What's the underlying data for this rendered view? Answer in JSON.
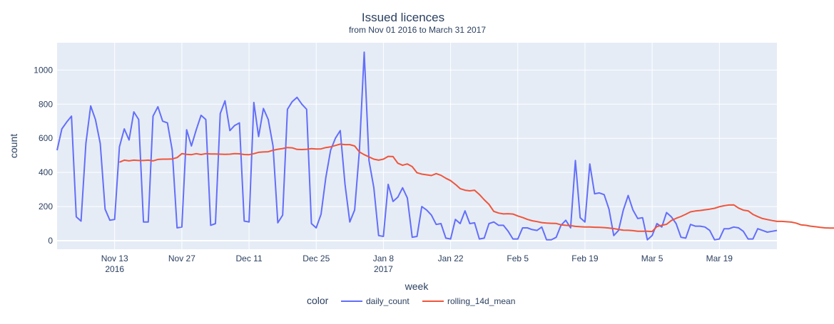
{
  "chart_data": {
    "type": "line",
    "title": "Issued licences",
    "subtitle": "from Nov 01 2016 to March 31 2017",
    "xlabel": "week",
    "ylabel": "count",
    "x_start": "2016-11-01",
    "x_end": "2017-03-31",
    "xlim": [
      "2016-11-01",
      "2017-03-31"
    ],
    "ylim": [
      -50,
      1160
    ],
    "y_ticks": [
      0,
      200,
      400,
      600,
      800,
      1000
    ],
    "x_ticks": [
      {
        "date": "2016-11-13",
        "label": "Nov 13",
        "sublabel": "2016"
      },
      {
        "date": "2016-11-27",
        "label": "Nov 27",
        "sublabel": ""
      },
      {
        "date": "2016-12-11",
        "label": "Dec 11",
        "sublabel": ""
      },
      {
        "date": "2016-12-25",
        "label": "Dec 25",
        "sublabel": ""
      },
      {
        "date": "2017-01-08",
        "label": "Jan 8",
        "sublabel": "2017"
      },
      {
        "date": "2017-01-22",
        "label": "Jan 22",
        "sublabel": ""
      },
      {
        "date": "2017-02-05",
        "label": "Feb 5",
        "sublabel": ""
      },
      {
        "date": "2017-02-19",
        "label": "Feb 19",
        "sublabel": ""
      },
      {
        "date": "2017-03-05",
        "label": "Mar 5",
        "sublabel": ""
      },
      {
        "date": "2017-03-19",
        "label": "Mar 19",
        "sublabel": ""
      }
    ],
    "grid": true,
    "legend": {
      "title": "color",
      "position": "bottom-center"
    },
    "series": [
      {
        "name": "daily_count",
        "color": "#636efa",
        "start_date": "2016-11-01",
        "values": [
          530,
          655,
          695,
          730,
          140,
          115,
          570,
          790,
          710,
          570,
          185,
          120,
          125,
          550,
          655,
          590,
          755,
          710,
          110,
          110,
          730,
          785,
          700,
          690,
          530,
          75,
          80,
          650,
          555,
          650,
          735,
          710,
          90,
          100,
          745,
          820,
          645,
          675,
          690,
          115,
          110,
          810,
          610,
          775,
          710,
          555,
          105,
          150,
          770,
          815,
          840,
          800,
          770,
          100,
          75,
          155,
          370,
          530,
          600,
          645,
          330,
          110,
          180,
          530,
          1105,
          470,
          310,
          30,
          25,
          330,
          230,
          255,
          310,
          250,
          20,
          25,
          200,
          180,
          150,
          95,
          100,
          15,
          10,
          125,
          100,
          175,
          100,
          105,
          10,
          15,
          100,
          110,
          90,
          90,
          55,
          10,
          10,
          75,
          75,
          65,
          60,
          80,
          5,
          5,
          20,
          90,
          120,
          75,
          470,
          135,
          110,
          450,
          275,
          280,
          270,
          185,
          30,
          60,
          180,
          265,
          180,
          130,
          135,
          5,
          30,
          100,
          80,
          165,
          140,
          100,
          20,
          15,
          95,
          85,
          85,
          80,
          60,
          5,
          10,
          70,
          70,
          80,
          75,
          55,
          10,
          10,
          70,
          60,
          50,
          55,
          60
        ]
      },
      {
        "name": "rolling_14d_mean",
        "color": "#ef553b",
        "start_date": "2016-11-14",
        "values": [
          460,
          472,
          468,
          472,
          470,
          470,
          472,
          468,
          476,
          478,
          478,
          479,
          487,
          510,
          506,
          504,
          510,
          505,
          510,
          508,
          508,
          507,
          506,
          507,
          510,
          509,
          505,
          504,
          510,
          518,
          520,
          521,
          530,
          536,
          540,
          546,
          544,
          535,
          534,
          536,
          539,
          537,
          538,
          546,
          550,
          558,
          566,
          563,
          563,
          555,
          520,
          504,
          491,
          478,
          472,
          478,
          494,
          493,
          454,
          442,
          450,
          434,
          398,
          390,
          386,
          382,
          393,
          383,
          366,
          352,
          330,
          305,
          296,
          292,
          296,
          271,
          240,
          213,
          172,
          162,
          157,
          158,
          156,
          145,
          136,
          125,
          117,
          112,
          106,
          103,
          102,
          101,
          93,
          90,
          88,
          84,
          82,
          80,
          80,
          79,
          78,
          77,
          74,
          71,
          66,
          62,
          61,
          59,
          55,
          55,
          55,
          54,
          83,
          90,
          96,
          118,
          131,
          142,
          155,
          169,
          174,
          177,
          181,
          185,
          190,
          199,
          205,
          209,
          210,
          191,
          179,
          175,
          154,
          141,
          130,
          124,
          118,
          113,
          113,
          111,
          109,
          103,
          93,
          90,
          85,
          82,
          78,
          75,
          74,
          74,
          72,
          69,
          68,
          67,
          63,
          62,
          62,
          61,
          57,
          55,
          54,
          52,
          50,
          50,
          50
        ]
      }
    ]
  }
}
